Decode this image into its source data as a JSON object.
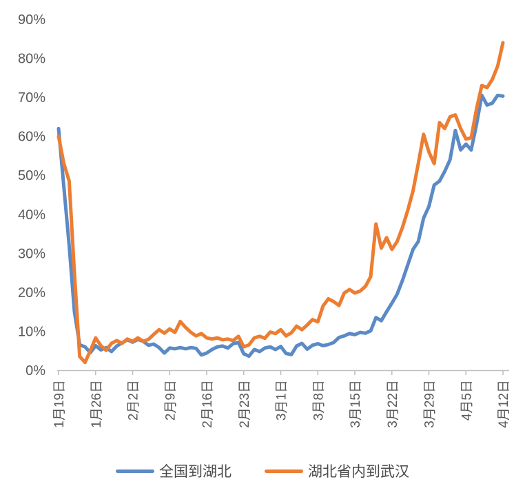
{
  "chart_data": {
    "type": "line",
    "title": "",
    "xlabel": "",
    "ylabel": "",
    "grid": false,
    "legend_position": "bottom-center",
    "background_color": "#ffffff",
    "axis_line_color": "#bfbfbf",
    "tick_color": "#bfbfbf",
    "tick_label_color": "#595959",
    "ylim": [
      0,
      90
    ],
    "y_unit": "%",
    "y_tick_labels": [
      "0%",
      "10%",
      "20%",
      "30%",
      "40%",
      "50%",
      "60%",
      "70%",
      "80%",
      "90%"
    ],
    "x_tick_labels": [
      "1月19日",
      "1月26日",
      "2月2日",
      "2月9日",
      "2月16日",
      "2月23日",
      "3月1日",
      "3月8日",
      "3月15日",
      "3月22日",
      "3月29日",
      "4月5日",
      "4月12日"
    ],
    "x_tick_day_indices": [
      0,
      7,
      14,
      21,
      28,
      35,
      42,
      49,
      56,
      63,
      70,
      77,
      84
    ],
    "x": [
      "1月19日",
      "1月20日",
      "1月21日",
      "1月22日",
      "1月23日",
      "1月24日",
      "1月25日",
      "1月26日",
      "1月27日",
      "1月28日",
      "1月29日",
      "1月30日",
      "1月31日",
      "2月1日",
      "2月2日",
      "2月3日",
      "2月4日",
      "2月5日",
      "2月6日",
      "2月7日",
      "2月8日",
      "2月9日",
      "2月10日",
      "2月11日",
      "2月12日",
      "2月13日",
      "2月14日",
      "2月15日",
      "2月16日",
      "2月17日",
      "2月18日",
      "2月19日",
      "2月20日",
      "2月21日",
      "2月22日",
      "2月23日",
      "2月24日",
      "2月25日",
      "2月26日",
      "2月27日",
      "2月28日",
      "2月29日",
      "3月1日",
      "3月2日",
      "3月3日",
      "3月4日",
      "3月5日",
      "3月6日",
      "3月7日",
      "3月8日",
      "3月9日",
      "3月10日",
      "3月11日",
      "3月12日",
      "3月13日",
      "3月14日",
      "3月15日",
      "3月16日",
      "3月17日",
      "3月18日",
      "3月19日",
      "3月20日",
      "3月21日",
      "3月22日",
      "3月23日",
      "3月24日",
      "3月25日",
      "3月26日",
      "3月27日",
      "3月28日",
      "3月29日",
      "3月30日",
      "3月31日",
      "4月1日",
      "4月2日",
      "4月3日",
      "4月4日",
      "4月5日",
      "4月6日",
      "4月7日",
      "4月8日",
      "4月9日",
      "4月10日",
      "4月11日",
      "4月12日"
    ],
    "series": [
      {
        "name": "全国到湖北",
        "color": "#5b8ac6",
        "values": [
          62,
          47,
          32,
          15,
          6.5,
          6,
          4.5,
          6.3,
          5.2,
          5.8,
          4.8,
          6.2,
          7,
          7.8,
          7.2,
          7.9,
          7.4,
          6.4,
          6.7,
          5.8,
          4.4,
          5.7,
          5.5,
          5.8,
          5.5,
          5.8,
          5.6,
          3.9,
          4.4,
          5.3,
          6,
          6.2,
          5.7,
          6.8,
          7.1,
          4.2,
          3.6,
          5.3,
          4.8,
          5.7,
          6,
          5.3,
          6.1,
          4.3,
          4,
          6.2,
          6.9,
          5.4,
          6.4,
          6.8,
          6.3,
          6.6,
          7.1,
          8.4,
          8.8,
          9.4,
          9.1,
          9.7,
          9.5,
          10.1,
          13.5,
          12.7,
          15,
          17.2,
          19.5,
          23,
          27,
          31,
          33,
          39,
          42,
          47.5,
          48.5,
          51,
          54,
          61.5,
          56.5,
          58,
          56.5,
          63,
          70.5,
          68,
          68.5,
          70.5,
          70.3
        ]
      },
      {
        "name": "湖北省内到武汉",
        "color": "#ed7d31",
        "values": [
          60,
          53,
          48.5,
          25,
          3.5,
          2,
          5,
          8.3,
          6.3,
          5.1,
          6.9,
          7.6,
          6.9,
          8,
          7.4,
          8.3,
          7.4,
          7.9,
          9.2,
          10.4,
          9.5,
          10.6,
          9.7,
          12.5,
          11,
          9.7,
          8.8,
          9.4,
          8.3,
          8,
          8.3,
          7.8,
          8,
          7.6,
          8.7,
          6,
          6.5,
          8.3,
          8.7,
          8.2,
          9.8,
          9.4,
          10.4,
          8.8,
          9.6,
          11.3,
          10.4,
          11.6,
          13,
          12.4,
          16.5,
          18.3,
          17.6,
          16.6,
          19.8,
          20.7,
          19.8,
          20.3,
          21.5,
          24,
          37.5,
          31.3,
          34,
          31,
          33,
          36.6,
          41,
          46,
          53,
          60.5,
          56,
          53,
          63.5,
          62,
          65,
          65.5,
          62,
          59.3,
          59.6,
          67,
          73,
          72.5,
          74.6,
          78,
          84
        ]
      }
    ]
  }
}
